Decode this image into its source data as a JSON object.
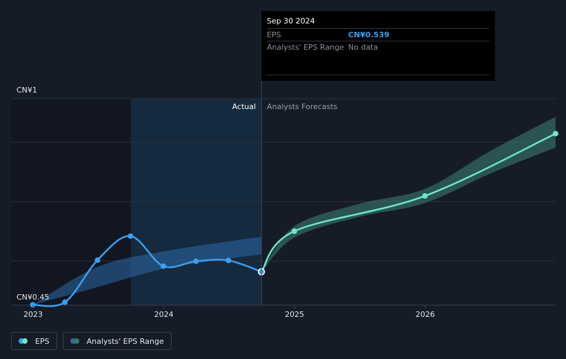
{
  "chart_data": {
    "type": "line",
    "y_axis_labels": [
      "CN¥1",
      "CN¥0.45"
    ],
    "ylim": [
      0.45,
      1.0
    ],
    "x_ticks": [
      "2023",
      "2024",
      "2025",
      "2026"
    ],
    "section_labels": {
      "actual": "Actual",
      "forecast": "Analysts Forecasts"
    },
    "grid": true,
    "legend_position": "bottom-left",
    "series": [
      {
        "name": "EPS",
        "kind": "actual",
        "color": "#3b9ff0",
        "points": [
          {
            "x": "2022-12-31",
            "y": 0.451
          },
          {
            "x": "2023-03-31",
            "y": 0.458
          },
          {
            "x": "2023-06-30",
            "y": 0.57
          },
          {
            "x": "2023-09-30",
            "y": 0.634
          },
          {
            "x": "2023-12-31",
            "y": 0.554
          },
          {
            "x": "2024-03-31",
            "y": 0.567
          },
          {
            "x": "2024-06-30",
            "y": 0.569
          },
          {
            "x": "2024-09-30",
            "y": 0.539
          }
        ]
      },
      {
        "name": "EPS",
        "kind": "forecast",
        "color": "#6ee7c8",
        "points": [
          {
            "x": "2024-09-30",
            "y": 0.539
          },
          {
            "x": "2024-12-31",
            "y": 0.647
          },
          {
            "x": "2025-12-31",
            "y": 0.741
          },
          {
            "x": "2026-12-31",
            "y": 0.907
          }
        ]
      }
    ],
    "ranges": [
      {
        "name": "Analysts' EPS Range",
        "kind": "actual",
        "color": "#2b6aa6",
        "x": [
          "2022-12-31",
          "2023-06-30",
          "2023-12-31",
          "2024-06-30",
          "2024-09-30"
        ],
        "low": [
          0.451,
          0.498,
          0.547,
          0.574,
          0.585
        ],
        "high": [
          0.451,
          0.552,
          0.593,
          0.62,
          0.632
        ]
      },
      {
        "name": "Analysts' EPS Range",
        "kind": "forecast",
        "color": "#3b7a70",
        "x": [
          "2024-09-30",
          "2024-12-31",
          "2025-06-30",
          "2025-12-31",
          "2026-06-30",
          "2026-12-31"
        ],
        "low": [
          0.539,
          0.63,
          0.685,
          0.722,
          0.8,
          0.87
        ],
        "high": [
          0.539,
          0.66,
          0.72,
          0.76,
          0.86,
          0.952
        ]
      }
    ]
  },
  "tooltip": {
    "date": "Sep 30 2024",
    "rows": [
      {
        "label": "EPS",
        "value": "CN¥0.539"
      },
      {
        "label": "Analysts' EPS Range",
        "value": "No data"
      }
    ]
  },
  "legend": {
    "items": [
      {
        "label": "EPS",
        "colors": [
          "#3b9ff0",
          "#6ee7c8"
        ]
      },
      {
        "label": "Analysts' EPS Range",
        "colors": [
          "#2b6aa6",
          "#3b7a70"
        ]
      }
    ]
  },
  "colors": {
    "background": "#151b27",
    "past_shade": "#111620",
    "highlight_band": "#17304a",
    "grid": "#2a303c"
  }
}
